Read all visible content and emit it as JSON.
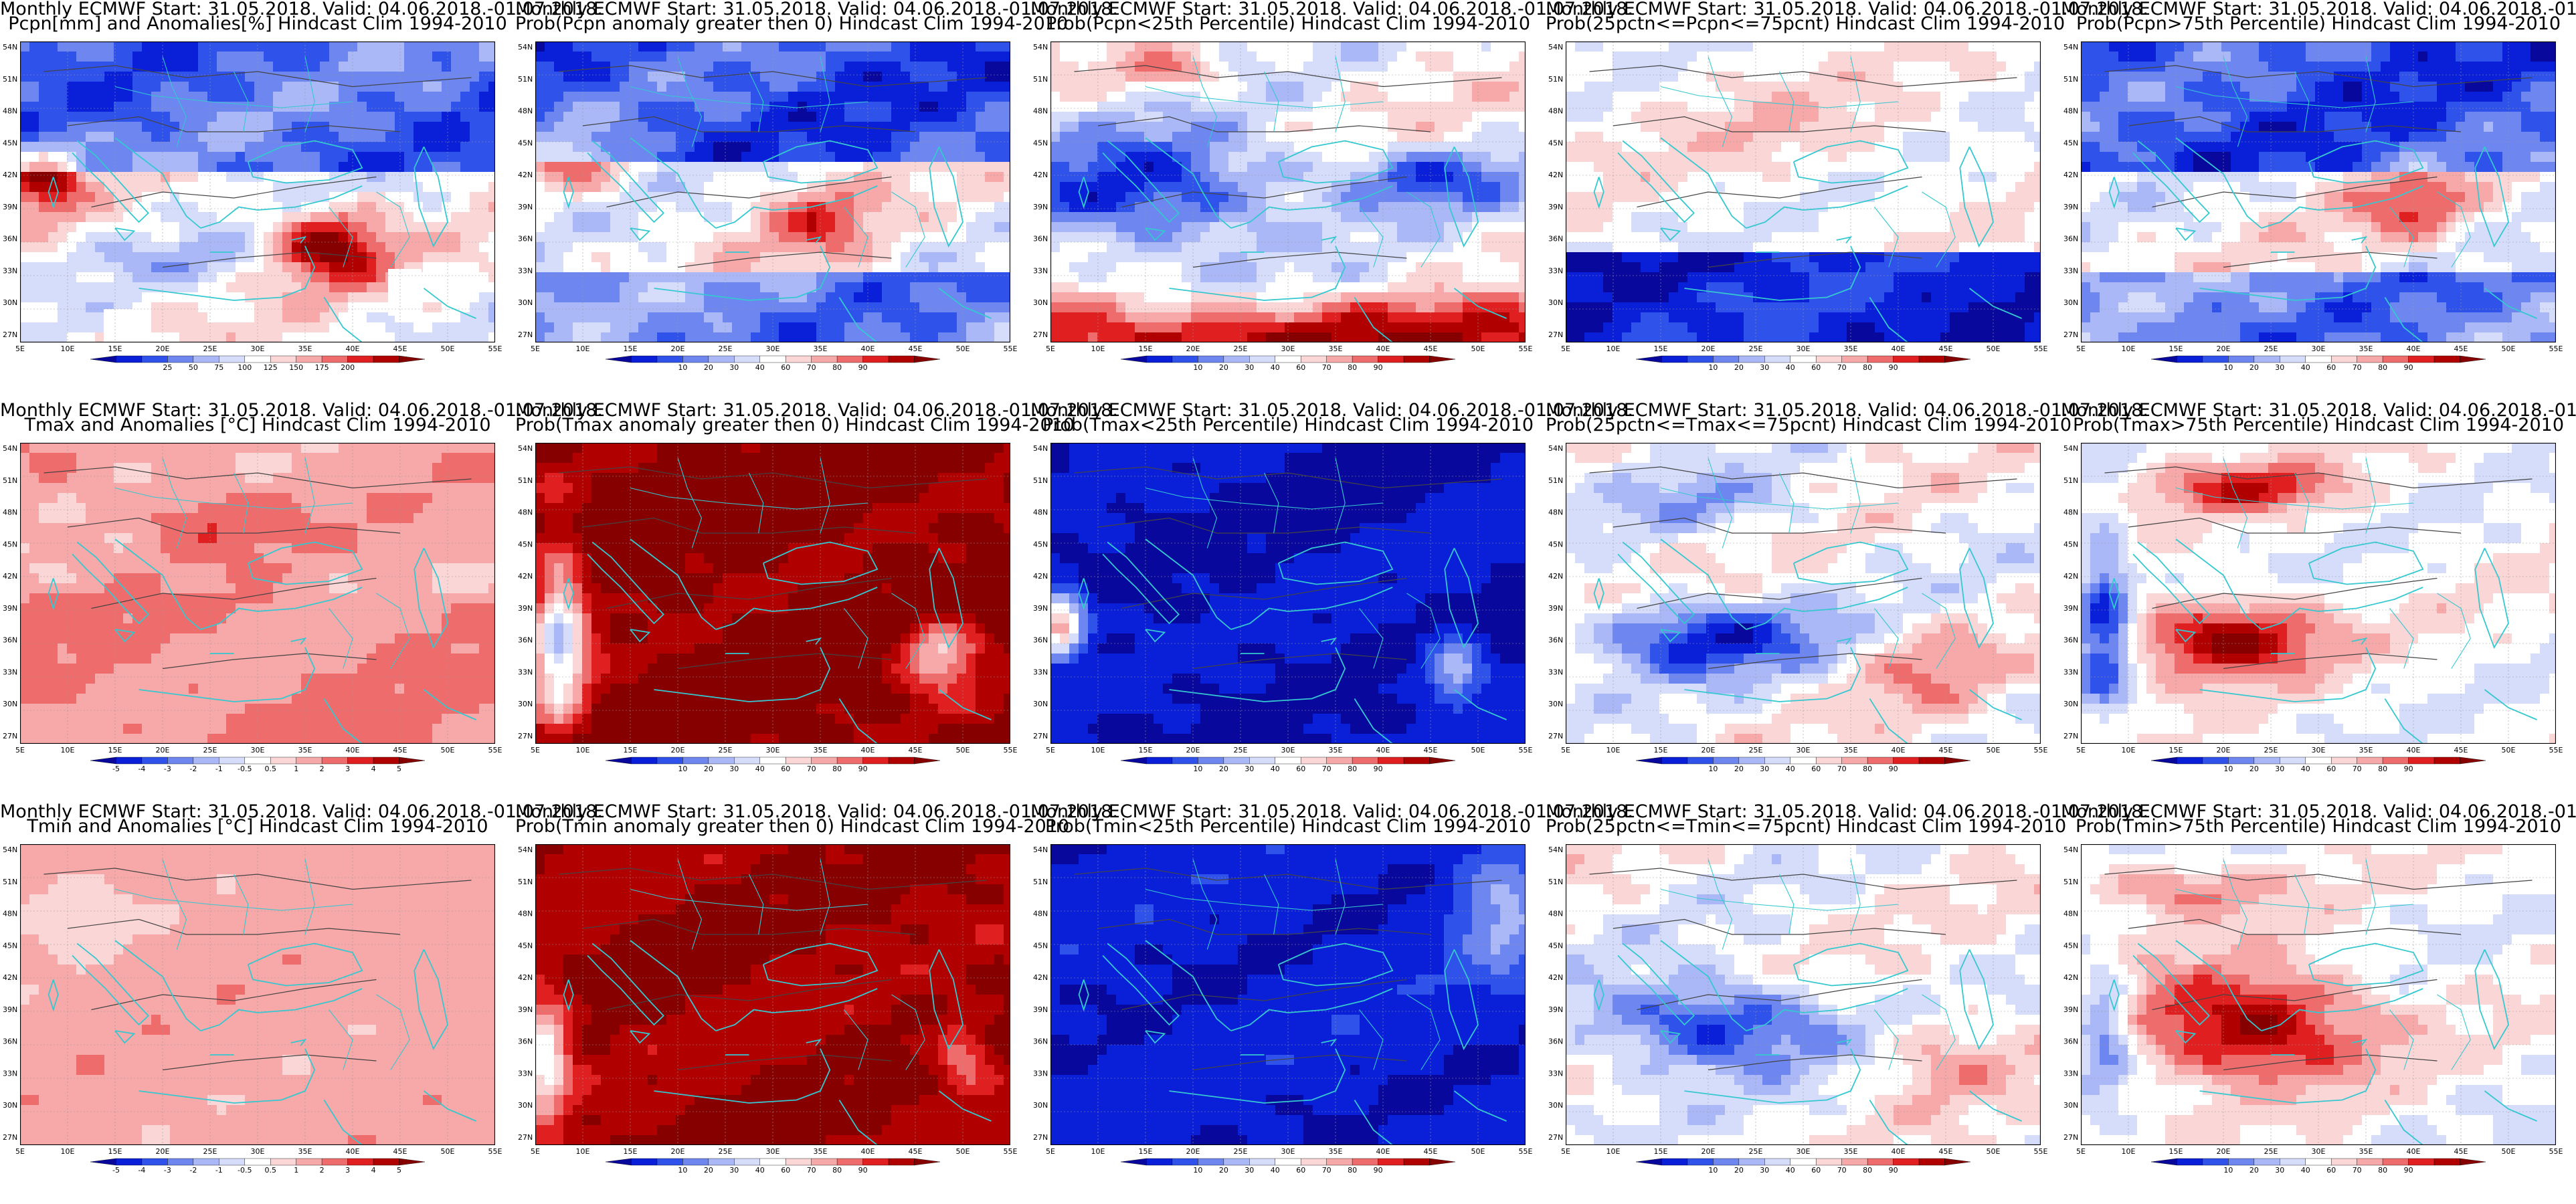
{
  "colors": {
    "blues": [
      "#08089c",
      "#0a1fd8",
      "#2f52ea",
      "#6d86f0",
      "#aab8f7",
      "#d6ddfb"
    ],
    "white": "#ffffff",
    "reds": [
      "#fbd6d6",
      "#f7a8a8",
      "#ef6c6c",
      "#e02020",
      "#b00000",
      "#860000"
    ],
    "coast": "#35c8d0",
    "contour": "#444444",
    "grid": "#999999"
  },
  "map": {
    "lat_labels": [
      "54N",
      "51N",
      "48N",
      "45N",
      "42N",
      "39N",
      "36N",
      "33N",
      "30N",
      "27N"
    ],
    "lon_labels": [
      "5E",
      "10E",
      "15E",
      "20E",
      "25E",
      "30E",
      "35E",
      "40E",
      "45E",
      "50E",
      "55E"
    ]
  },
  "colorbars": {
    "pcpn_anom": [
      "25",
      "50",
      "75",
      "100",
      "125",
      "150",
      "175",
      "200"
    ],
    "temp_anom": [
      "-5",
      "-4",
      "-3",
      "-2",
      "-1",
      "-0.5",
      "0.5",
      "1",
      "2",
      "3",
      "4",
      "5"
    ],
    "prob": [
      "10",
      "20",
      "30",
      "40",
      "60",
      "70",
      "80",
      "90"
    ]
  },
  "header_line": "Monthly ECMWF Start: 31.05.2018. Valid: 04.06.2018.-01.07.2018.",
  "panels": [
    {
      "row": 0,
      "col": 0,
      "title2": "Pcpn[mm] and Anomalies[%] Hindcast Clim 1994-2010",
      "bar": "pcpn_anom",
      "pattern": "pcpn_anom"
    },
    {
      "row": 0,
      "col": 1,
      "title2": "Prob(Pcpn anomaly greater then 0) Hindcast Clim 1994-2010",
      "bar": "prob",
      "pattern": "pcpn_gt0"
    },
    {
      "row": 0,
      "col": 2,
      "title2": "Prob(Pcpn<25th Percentile) Hindcast Clim 1994-2010",
      "bar": "prob",
      "pattern": "pcpn_lt25"
    },
    {
      "row": 0,
      "col": 3,
      "title2": "Prob(25pctn<=Pcpn<=75pcnt) Hindcast Clim 1994-2010",
      "bar": "prob",
      "pattern": "pcpn_mid"
    },
    {
      "row": 0,
      "col": 4,
      "title2": "Prob(Pcpn>75th Percentile) Hindcast Clim 1994-2010",
      "bar": "prob",
      "pattern": "pcpn_gt75"
    },
    {
      "row": 1,
      "col": 0,
      "title2": "Tmax and Anomalies [°C] Hindcast Clim 1994-2010",
      "bar": "temp_anom",
      "pattern": "t_anom_max"
    },
    {
      "row": 1,
      "col": 1,
      "title2": "Prob(Tmax anomaly greater then 0) Hindcast Clim 1994-2010",
      "bar": "prob",
      "pattern": "tmax_gt0"
    },
    {
      "row": 1,
      "col": 2,
      "title2": "Prob(Tmax<25th Percentile) Hindcast Clim 1994-2010",
      "bar": "prob",
      "pattern": "t_lt25"
    },
    {
      "row": 1,
      "col": 3,
      "title2": "Prob(25pctn<=Tmax<=75pcnt) Hindcast Clim 1994-2010",
      "bar": "prob",
      "pattern": "t_mid"
    },
    {
      "row": 1,
      "col": 4,
      "title2": "Prob(Tmax>75th Percentile) Hindcast Clim 1994-2010",
      "bar": "prob",
      "pattern": "t_gt75"
    },
    {
      "row": 2,
      "col": 0,
      "title2": "Tmin and Anomalies [°C] Hindcast Clim 1994-2010",
      "bar": "temp_anom",
      "pattern": "t_anom_min"
    },
    {
      "row": 2,
      "col": 1,
      "title2": "Prob(Tmin anomaly greater then 0) Hindcast Clim 1994-2010",
      "bar": "prob",
      "pattern": "tmin_gt0"
    },
    {
      "row": 2,
      "col": 2,
      "title2": "Prob(Tmin<25th Percentile) Hindcast Clim 1994-2010",
      "bar": "prob",
      "pattern": "tmin_lt25"
    },
    {
      "row": 2,
      "col": 3,
      "title2": "Prob(25pctn<=Tmin<=75pcnt) Hindcast Clim 1994-2010",
      "bar": "prob",
      "pattern": "tmin_mid"
    },
    {
      "row": 2,
      "col": 4,
      "title2": "Prob(Tmin>75th Percentile) Hindcast Clim 1994-2010",
      "bar": "prob",
      "pattern": "tmin_gt75"
    }
  ]
}
